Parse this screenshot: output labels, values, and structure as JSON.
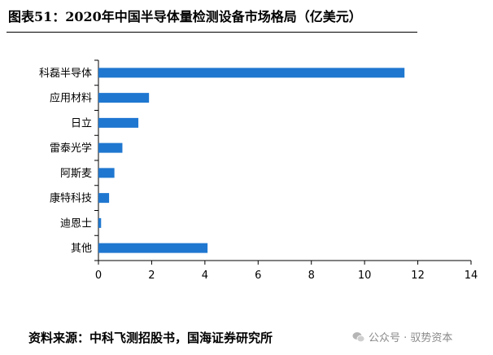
{
  "header": {
    "title": "图表51：2020年中国半导体量检测设备市场格局（亿美元）"
  },
  "footer": {
    "source": "资料来源：中科飞测招股书，国海证券研究所",
    "watermark": "公众号 · 驭势资本"
  },
  "chart_data": {
    "type": "bar",
    "orientation": "horizontal",
    "categories": [
      "科磊半导体",
      "应用材料",
      "日立",
      "雷泰光学",
      "阿斯麦",
      "康特科技",
      "迪恩士",
      "其他"
    ],
    "values": [
      11.5,
      1.9,
      1.5,
      0.9,
      0.6,
      0.4,
      0.1,
      4.1
    ],
    "xlim": [
      0,
      14
    ],
    "xticks": [
      0,
      2,
      4,
      6,
      8,
      10,
      12,
      14
    ],
    "bar_color": "#1f77d0",
    "grid": false
  }
}
